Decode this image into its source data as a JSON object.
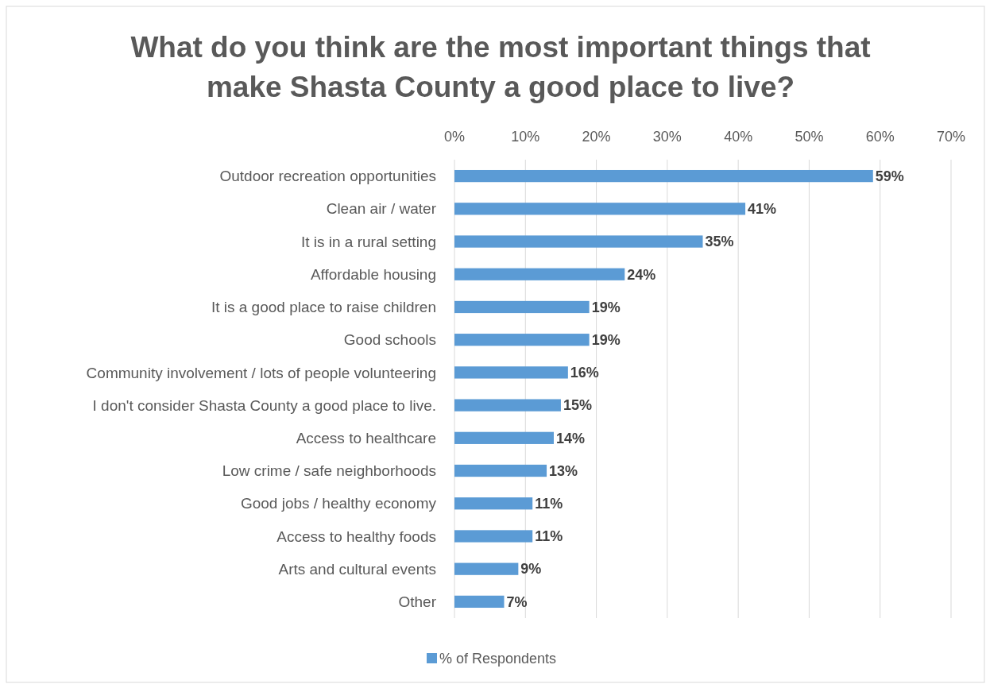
{
  "chart_data": {
    "type": "bar",
    "orientation": "horizontal",
    "title": "What do you think are the most important things that make Shasta County a good place to live?",
    "categories": [
      "Outdoor recreation opportunities",
      "Clean air / water",
      "It is in a rural setting",
      "Affordable housing",
      "It is a good place to raise children",
      "Good schools",
      "Community involvement / lots of people volunteering",
      "I don't consider Shasta County a good place to live.",
      "Access to healthcare",
      "Low crime / safe neighborhoods",
      "Good jobs / healthy economy",
      "Access to healthy foods",
      "Arts and cultural events",
      "Other"
    ],
    "series": [
      {
        "name": "% of Respondents",
        "color": "#5b9bd5",
        "values": [
          59,
          41,
          35,
          24,
          19,
          19,
          16,
          15,
          14,
          13,
          11,
          11,
          9,
          7
        ],
        "value_labels": [
          "59%",
          "41%",
          "35%",
          "24%",
          "19%",
          "19%",
          "16%",
          "15%",
          "14%",
          "13%",
          "11%",
          "11%",
          "9%",
          "7%"
        ]
      }
    ],
    "xlim": [
      0,
      70
    ],
    "xticks": [
      {
        "value": 0,
        "label": "0%"
      },
      {
        "value": 10,
        "label": "10%"
      },
      {
        "value": 20,
        "label": "20%"
      },
      {
        "value": 30,
        "label": "30%"
      },
      {
        "value": 40,
        "label": "40%"
      },
      {
        "value": 50,
        "label": "50%"
      },
      {
        "value": 60,
        "label": "60%"
      },
      {
        "value": 70,
        "label": "70%"
      }
    ],
    "grid": "x",
    "legend": "bottom"
  }
}
